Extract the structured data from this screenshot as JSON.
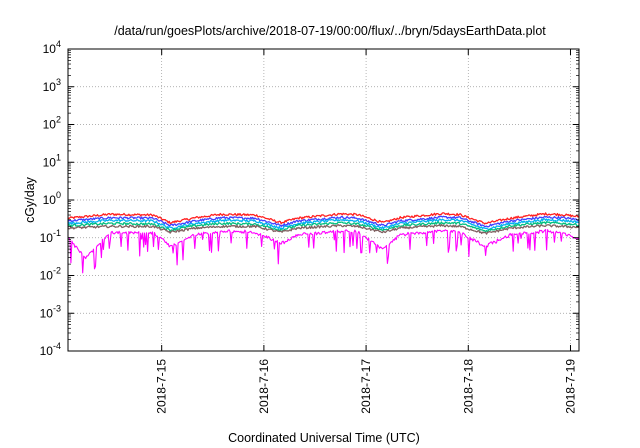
{
  "chart_data": {
    "type": "line",
    "title": "/data/run/goesPlots/archive/2018-07-19/00:00/flux/../bryn/5daysEarthData.plot",
    "xlabel": "Coordinated Universal Time (UTC)",
    "ylabel": "cGy/day",
    "yscale": "log",
    "ylim": [
      0.0001,
      10000
    ],
    "xlim": [
      "2018-07-14 02:00",
      "2018-07-19 02:00"
    ],
    "y_ticks": [
      {
        "value": 0.0001,
        "base": "10",
        "exp": "-4"
      },
      {
        "value": 0.001,
        "base": "10",
        "exp": "-3"
      },
      {
        "value": 0.01,
        "base": "10",
        "exp": "-2"
      },
      {
        "value": 0.1,
        "base": "10",
        "exp": "-1"
      },
      {
        "value": 1,
        "base": "10",
        "exp": "0"
      },
      {
        "value": 10,
        "base": "10",
        "exp": "1"
      },
      {
        "value": 100,
        "base": "10",
        "exp": "2"
      },
      {
        "value": 1000,
        "base": "10",
        "exp": "3"
      },
      {
        "value": 10000,
        "base": "10",
        "exp": "4"
      }
    ],
    "x_ticks": [
      {
        "value": "2018-07-15",
        "label": "2018-7-15"
      },
      {
        "value": "2018-07-16",
        "label": "2018-7-16"
      },
      {
        "value": "2018-07-17",
        "label": "2018-7-17"
      },
      {
        "value": "2018-07-18",
        "label": "2018-7-18"
      },
      {
        "value": "2018-07-19",
        "label": "2018-7-19"
      }
    ],
    "grid": true,
    "legend": "none",
    "series": [
      {
        "color": "#ff2020",
        "x": [
          "2018-07-14 02:00",
          "2018-07-14 12:00",
          "2018-07-14 22:00",
          "2018-07-15 02:00",
          "2018-07-15 08:00",
          "2018-07-15 14:00",
          "2018-07-15 22:00",
          "2018-07-16 04:00",
          "2018-07-16 08:00",
          "2018-07-16 18:00",
          "2018-07-16 22:00",
          "2018-07-17 04:00",
          "2018-07-17 08:00",
          "2018-07-17 18:00",
          "2018-07-17 22:00",
          "2018-07-18 04:00",
          "2018-07-18 10:00",
          "2018-07-18 18:00",
          "2018-07-18 22:00",
          "2018-07-19 02:00"
        ],
        "values": [
          0.33,
          0.42,
          0.4,
          0.25,
          0.34,
          0.42,
          0.4,
          0.25,
          0.33,
          0.43,
          0.41,
          0.25,
          0.34,
          0.44,
          0.41,
          0.24,
          0.33,
          0.43,
          0.41,
          0.36
        ]
      },
      {
        "color": "#4040ff",
        "x": [
          "2018-07-14 02:00",
          "2018-07-14 12:00",
          "2018-07-14 22:00",
          "2018-07-15 02:00",
          "2018-07-15 08:00",
          "2018-07-15 14:00",
          "2018-07-15 22:00",
          "2018-07-16 04:00",
          "2018-07-16 08:00",
          "2018-07-16 18:00",
          "2018-07-16 22:00",
          "2018-07-17 04:00",
          "2018-07-17 08:00",
          "2018-07-17 18:00",
          "2018-07-17 22:00",
          "2018-07-18 04:00",
          "2018-07-18 10:00",
          "2018-07-18 18:00",
          "2018-07-18 22:00",
          "2018-07-19 02:00"
        ],
        "values": [
          0.28,
          0.34,
          0.33,
          0.21,
          0.28,
          0.34,
          0.33,
          0.21,
          0.28,
          0.35,
          0.33,
          0.21,
          0.28,
          0.35,
          0.34,
          0.2,
          0.28,
          0.35,
          0.34,
          0.3
        ]
      },
      {
        "color": "#00b0f0",
        "x": [
          "2018-07-14 02:00",
          "2018-07-14 12:00",
          "2018-07-14 22:00",
          "2018-07-15 02:00",
          "2018-07-15 08:00",
          "2018-07-15 14:00",
          "2018-07-15 22:00",
          "2018-07-16 04:00",
          "2018-07-16 08:00",
          "2018-07-16 18:00",
          "2018-07-16 22:00",
          "2018-07-17 04:00",
          "2018-07-17 08:00",
          "2018-07-17 18:00",
          "2018-07-17 22:00",
          "2018-07-18 04:00",
          "2018-07-18 10:00",
          "2018-07-18 18:00",
          "2018-07-18 22:00",
          "2018-07-19 02:00"
        ],
        "values": [
          0.24,
          0.29,
          0.28,
          0.18,
          0.24,
          0.29,
          0.28,
          0.18,
          0.24,
          0.3,
          0.28,
          0.18,
          0.24,
          0.3,
          0.29,
          0.17,
          0.24,
          0.3,
          0.29,
          0.26
        ]
      },
      {
        "color": "#00c080",
        "x": [
          "2018-07-14 02:00",
          "2018-07-14 12:00",
          "2018-07-14 22:00",
          "2018-07-15 02:00",
          "2018-07-15 08:00",
          "2018-07-15 14:00",
          "2018-07-15 22:00",
          "2018-07-16 04:00",
          "2018-07-16 08:00",
          "2018-07-16 18:00",
          "2018-07-16 22:00",
          "2018-07-17 04:00",
          "2018-07-17 08:00",
          "2018-07-17 18:00",
          "2018-07-17 22:00",
          "2018-07-18 04:00",
          "2018-07-18 10:00",
          "2018-07-18 18:00",
          "2018-07-18 22:00",
          "2018-07-19 02:00"
        ],
        "values": [
          0.21,
          0.24,
          0.23,
          0.16,
          0.21,
          0.24,
          0.23,
          0.16,
          0.21,
          0.25,
          0.23,
          0.16,
          0.21,
          0.25,
          0.24,
          0.15,
          0.21,
          0.25,
          0.24,
          0.22
        ]
      },
      {
        "color": "#806060",
        "x": [
          "2018-07-14 02:00",
          "2018-07-14 12:00",
          "2018-07-14 22:00",
          "2018-07-15 02:00",
          "2018-07-15 08:00",
          "2018-07-15 14:00",
          "2018-07-15 22:00",
          "2018-07-16 04:00",
          "2018-07-16 08:00",
          "2018-07-16 18:00",
          "2018-07-16 22:00",
          "2018-07-17 04:00",
          "2018-07-17 08:00",
          "2018-07-17 18:00",
          "2018-07-17 22:00",
          "2018-07-18 04:00",
          "2018-07-18 10:00",
          "2018-07-18 18:00",
          "2018-07-18 22:00",
          "2018-07-19 02:00"
        ],
        "values": [
          0.18,
          0.2,
          0.2,
          0.14,
          0.18,
          0.2,
          0.2,
          0.14,
          0.18,
          0.21,
          0.2,
          0.14,
          0.18,
          0.21,
          0.2,
          0.13,
          0.18,
          0.21,
          0.2,
          0.19
        ]
      },
      {
        "color": "#ff00ff",
        "x": [
          "2018-07-14 02:00",
          "2018-07-14 06:00",
          "2018-07-14 12:00",
          "2018-07-14 22:00",
          "2018-07-15 02:00",
          "2018-07-15 08:00",
          "2018-07-15 14:00",
          "2018-07-15 22:00",
          "2018-07-16 04:00",
          "2018-07-16 08:00",
          "2018-07-16 18:00",
          "2018-07-16 22:00",
          "2018-07-17 04:00",
          "2018-07-17 08:00",
          "2018-07-17 18:00",
          "2018-07-17 22:00",
          "2018-07-18 04:00",
          "2018-07-18 10:00",
          "2018-07-18 18:00",
          "2018-07-18 22:00",
          "2018-07-19 02:00"
        ],
        "values": [
          0.1,
          0.03,
          0.13,
          0.14,
          0.06,
          0.12,
          0.15,
          0.14,
          0.07,
          0.12,
          0.15,
          0.14,
          0.05,
          0.12,
          0.16,
          0.14,
          0.06,
          0.12,
          0.15,
          0.14,
          0.09
        ]
      }
    ]
  }
}
